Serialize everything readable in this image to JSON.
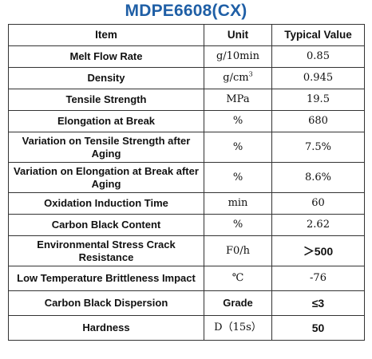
{
  "title": "MDPE6608(CX)",
  "headers": {
    "item": "Item",
    "unit": "Unit",
    "value": "Typical Value"
  },
  "rows": [
    {
      "item": "Melt Flow Rate",
      "unit": "g/10min",
      "value": "0.85"
    },
    {
      "item": "Density",
      "unit": "g/cm",
      "unit_sup": "3",
      "value": "0.945"
    },
    {
      "item": "Tensile Strength",
      "unit": "MPa",
      "value": "19.5"
    },
    {
      "item": "Elongation at Break",
      "unit": "%",
      "value": "680"
    },
    {
      "item": "Variation on Tensile Strength after Aging",
      "unit": "%",
      "value": "7.5%"
    },
    {
      "item": "Variation on Elongation at Break after Aging",
      "unit": "%",
      "value": "8.6%"
    },
    {
      "item": "Oxidation Induction Time",
      "unit": "min",
      "value": "60"
    },
    {
      "item": "Carbon Black Content",
      "unit": "%",
      "value": "2.62"
    },
    {
      "item": "Environmental Stress Crack Resistance",
      "unit": "F0/h",
      "value": "＞500"
    },
    {
      "item": "Low Temperature Brittleness Impact",
      "unit": "℃",
      "value": "-76"
    },
    {
      "item": "Carbon Black Dispersion",
      "unit": "Grade",
      "value": "≤3"
    },
    {
      "item": "Hardness",
      "unit": "D（15s）",
      "value": "50"
    }
  ]
}
